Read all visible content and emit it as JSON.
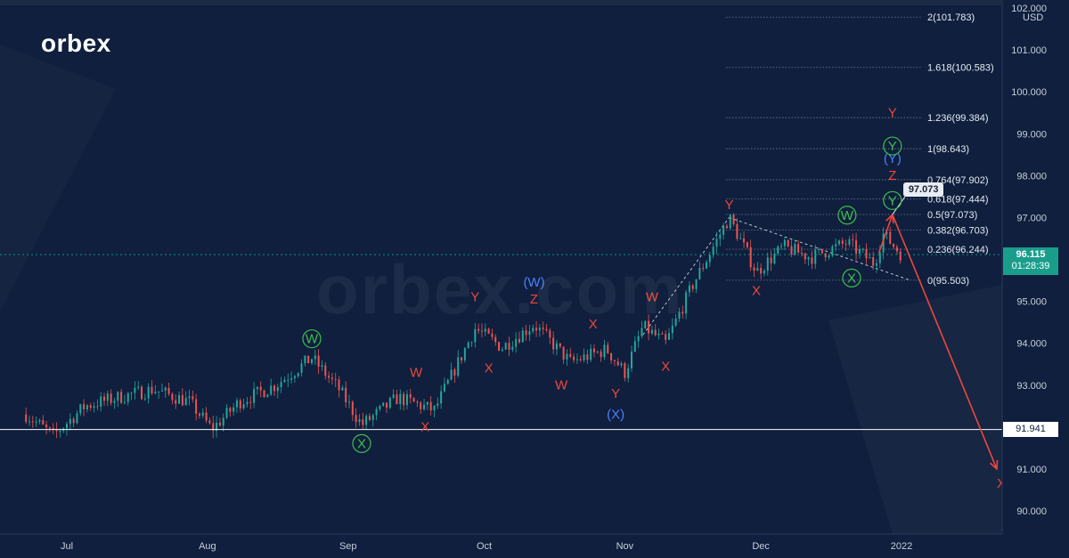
{
  "logo": "orbex",
  "watermark": "orbex.com",
  "currency": "USD",
  "current_price": "96.115",
  "countdown": "01:28:39",
  "horizontal_level_label": "91.941",
  "callout_label": "97.073",
  "colors": {
    "background": "#0f1f3d",
    "candle_up": "#26a69a",
    "candle_down": "#ef5350",
    "wave_red": "#f0463c",
    "wave_blue": "#4f7dff",
    "wave_green": "#3fbf4f",
    "price_tag": "#1a9e8c"
  },
  "chart_data": {
    "type": "candlestick",
    "instrument_currency": "USD",
    "x_tick_labels": [
      "Jul",
      "Aug",
      "Sep",
      "Oct",
      "Nov",
      "Dec",
      "2022"
    ],
    "y_tick_labels": [
      "90.000",
      "91.000",
      "92.000",
      "93.000",
      "94.000",
      "95.000",
      "96.000",
      "97.000",
      "98.000",
      "99.000",
      "100.000",
      "101.000",
      "102.000"
    ],
    "ylim": [
      89.7,
      102.2
    ],
    "grid": false,
    "price_path": [
      {
        "date": "2021-06-22",
        "close": 92.3
      },
      {
        "date": "2021-06-28",
        "close": 91.8
      },
      {
        "date": "2021-07-05",
        "close": 92.5
      },
      {
        "date": "2021-07-12",
        "close": 92.7
      },
      {
        "date": "2021-07-20",
        "close": 92.9
      },
      {
        "date": "2021-07-28",
        "close": 92.6
      },
      {
        "date": "2021-08-02",
        "close": 91.95
      },
      {
        "date": "2021-08-08",
        "close": 92.6
      },
      {
        "date": "2021-08-16",
        "close": 93.0
      },
      {
        "date": "2021-08-24",
        "close": 93.65
      },
      {
        "date": "2021-08-30",
        "close": 92.9
      },
      {
        "date": "2021-09-04",
        "close": 92.05
      },
      {
        "date": "2021-09-12",
        "close": 92.7
      },
      {
        "date": "2021-09-20",
        "close": 92.4
      },
      {
        "date": "2021-09-29",
        "close": 94.35
      },
      {
        "date": "2021-10-05",
        "close": 93.9
      },
      {
        "date": "2021-10-12",
        "close": 94.45
      },
      {
        "date": "2021-10-20",
        "close": 93.55
      },
      {
        "date": "2021-10-28",
        "close": 93.85
      },
      {
        "date": "2021-11-01",
        "close": 93.3
      },
      {
        "date": "2021-11-05",
        "close": 94.4
      },
      {
        "date": "2021-11-10",
        "close": 94.0
      },
      {
        "date": "2021-11-16",
        "close": 95.4
      },
      {
        "date": "2021-11-24",
        "close": 97.0
      },
      {
        "date": "2021-11-30",
        "close": 95.7
      },
      {
        "date": "2021-12-06",
        "close": 96.3
      },
      {
        "date": "2021-12-12",
        "close": 96.05
      },
      {
        "date": "2021-12-20",
        "close": 96.4
      },
      {
        "date": "2021-12-26",
        "close": 95.9
      },
      {
        "date": "2021-12-28",
        "close": 96.6
      },
      {
        "date": "2022-01-01",
        "close": 96.115
      }
    ],
    "fibonacci_levels": [
      {
        "label": "2(101.783)",
        "value": 101.783
      },
      {
        "label": "1.618(100.583)",
        "value": 100.583
      },
      {
        "label": "1.236(99.384)",
        "value": 99.384
      },
      {
        "label": "1(98.643)",
        "value": 98.643
      },
      {
        "label": "0.764(97.902)",
        "value": 97.902
      },
      {
        "label": "0.618(97.444)",
        "value": 97.444
      },
      {
        "label": "0.5(97.073)",
        "value": 97.073
      },
      {
        "label": "0.382(96.703)",
        "value": 96.703
      },
      {
        "label": "0.236(96.244)",
        "value": 96.244
      },
      {
        "label": "0(95.503)",
        "value": 95.503
      }
    ],
    "horizontal_level": 91.941,
    "current_price": 96.115,
    "wave_labels": [
      {
        "text": "W",
        "color": "green",
        "circled": true,
        "date": "2021-08-24",
        "price": 94.0
      },
      {
        "text": "X",
        "color": "green",
        "circled": true,
        "date": "2021-09-04",
        "price": 91.5
      },
      {
        "text": "W",
        "color": "red",
        "date": "2021-09-16",
        "price": 93.2
      },
      {
        "text": "X",
        "color": "red",
        "date": "2021-09-18",
        "price": 91.9
      },
      {
        "text": "Y",
        "color": "red",
        "date": "2021-09-29",
        "price": 95.0
      },
      {
        "text": "X",
        "color": "red",
        "date": "2021-10-02",
        "price": 93.3
      },
      {
        "text": "(W)",
        "color": "blue",
        "date": "2021-10-12",
        "price": 95.35
      },
      {
        "text": "Z",
        "color": "red",
        "date": "2021-10-12",
        "price": 94.95
      },
      {
        "text": "W",
        "color": "red",
        "date": "2021-10-18",
        "price": 92.9
      },
      {
        "text": "X",
        "color": "red",
        "date": "2021-10-25",
        "price": 94.35
      },
      {
        "text": "Y",
        "color": "red",
        "date": "2021-10-30",
        "price": 92.7
      },
      {
        "text": "(X)",
        "color": "blue",
        "date": "2021-10-30",
        "price": 92.2
      },
      {
        "text": "W",
        "color": "red",
        "date": "2021-11-07",
        "price": 95.0
      },
      {
        "text": "X",
        "color": "red",
        "date": "2021-11-10",
        "price": 93.35
      },
      {
        "text": "Y",
        "color": "red",
        "date": "2021-11-24",
        "price": 97.2
      },
      {
        "text": "X",
        "color": "red",
        "date": "2021-11-30",
        "price": 95.15
      },
      {
        "text": "W",
        "color": "green",
        "circled": true,
        "date": "2021-12-20",
        "price": 96.95
      },
      {
        "text": "X",
        "color": "green",
        "circled": true,
        "date": "2021-12-21",
        "price": 95.45
      },
      {
        "text": "Y",
        "color": "green",
        "circled": true,
        "date": "2021-12-30",
        "price": 97.3
      },
      {
        "text": "Z",
        "color": "red",
        "date": "2021-12-30",
        "price": 97.9
      },
      {
        "text": "(Y)",
        "color": "blue",
        "date": "2021-12-30",
        "price": 98.3
      },
      {
        "text": "Y",
        "color": "green",
        "circled": true,
        "date": "2021-12-30",
        "price": 98.6
      },
      {
        "text": "Y",
        "color": "red",
        "date": "2021-12-30",
        "price": 99.4
      },
      {
        "text": "X",
        "color": "red",
        "date": "2022-01-23",
        "price": 90.55
      }
    ],
    "projection": [
      {
        "date": "2021-12-27",
        "price": 96.15
      },
      {
        "date": "2021-12-30",
        "price": 97.07
      },
      {
        "date": "2022-01-22",
        "price": 91.0
      }
    ],
    "trendlines": [
      {
        "from": {
          "date": "2021-11-24",
          "price": 97.0
        },
        "to": {
          "date": "2022-01-03",
          "price": 95.5
        }
      },
      {
        "from": {
          "date": "2021-11-05",
          "price": 94.2
        },
        "to": {
          "date": "2021-11-24",
          "price": 97.0
        }
      }
    ]
  }
}
